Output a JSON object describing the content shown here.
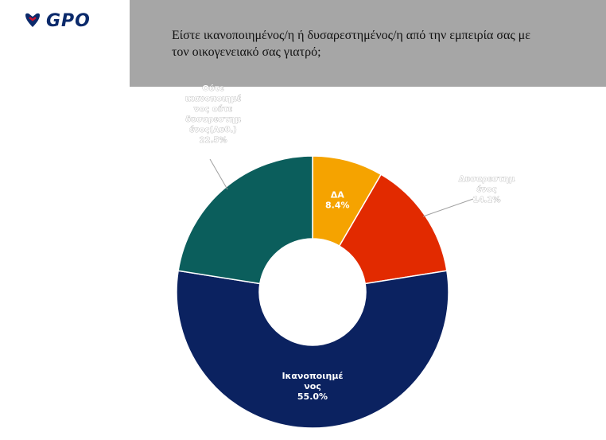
{
  "logo": {
    "text": "GPO",
    "icon": "gpo-heart-icon"
  },
  "header": {
    "question_line1": "Είστε ικανοποιημένος/η ή δυσαρεστημένος/η από την εμπειρία σας με",
    "question_line2": "τον οικογενειακό σας γιατρό;"
  },
  "chart_data": {
    "type": "pie",
    "donut": true,
    "slices": [
      {
        "name": "ΔΑ",
        "value": 8.4,
        "value_label": "8.4%",
        "color": "#f5a300",
        "label_lines": [
          "ΔΑ"
        ],
        "label_pos": "inside"
      },
      {
        "name": "Δυσαρεστημένος",
        "value": 14.1,
        "value_label": "14.1%",
        "color": "#e22a00",
        "label_lines": [
          "Δυσαρεστημ",
          "ένος"
        ],
        "label_pos": "outside"
      },
      {
        "name": "Ικανοποιημένος",
        "value": 55.0,
        "value_label": "55.0%",
        "color": "#0b2260",
        "label_lines": [
          "Ικανοποιημέ",
          "νος"
        ],
        "label_pos": "inside"
      },
      {
        "name": "Ούτε ικανοποιημένος ούτε δυσαρεστημένος (Αυθόρμητο)",
        "value": 22.5,
        "value_label": "22.5%",
        "color": "#0b5e5c",
        "label_lines": [
          "Ούτε",
          "ικανοποιημέ",
          "νος ούτε",
          "δυσαρεστημ",
          "ένος(Αυθ.)"
        ],
        "label_pos": "outside"
      }
    ]
  }
}
